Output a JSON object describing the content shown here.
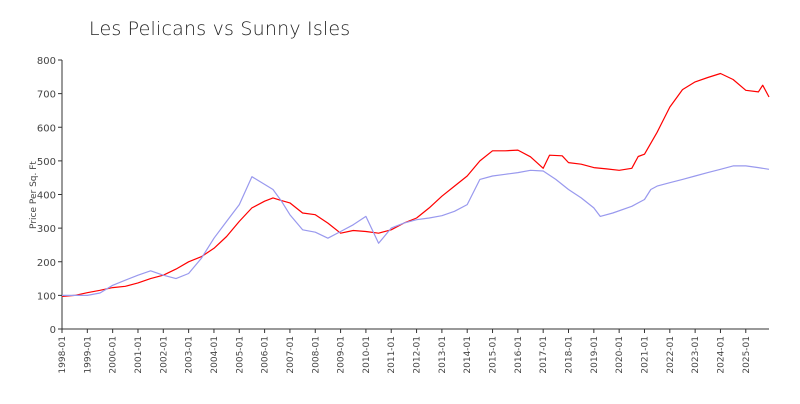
{
  "chart_data": {
    "type": "line",
    "title": "Les Pelicans vs Sunny Isles",
    "xlabel": "",
    "ylabel": "Price Per Sq. Ft",
    "ylim": [
      0,
      800
    ],
    "xlim": [
      "1998-01",
      "2025-12"
    ],
    "y_ticks": [
      0,
      100,
      200,
      300,
      400,
      500,
      600,
      700,
      800
    ],
    "x_ticks": [
      "1998-01",
      "1999-01",
      "2000-01",
      "2001-01",
      "2002-01",
      "2003-01",
      "2004-01",
      "2005-01",
      "2006-01",
      "2007-01",
      "2008-01",
      "2009-01",
      "2010-01",
      "2011-01",
      "2012-01",
      "2013-01",
      "2014-01",
      "2015-01",
      "2016-01",
      "2017-01",
      "2018-01",
      "2019-01",
      "2020-01",
      "2021-01",
      "2022-01",
      "2023-01",
      "2024-01",
      "2025-01"
    ],
    "grid": false,
    "legend": "none",
    "series": [
      {
        "color": "#ff0000",
        "points": [
          [
            "1998-01",
            97
          ],
          [
            "1998-07",
            100
          ],
          [
            "1999-01",
            108
          ],
          [
            "1999-07",
            115
          ],
          [
            "2000-01",
            123
          ],
          [
            "2000-07",
            127
          ],
          [
            "2001-01",
            137
          ],
          [
            "2001-07",
            150
          ],
          [
            "2002-01",
            160
          ],
          [
            "2002-07",
            178
          ],
          [
            "2003-01",
            200
          ],
          [
            "2003-07",
            215
          ],
          [
            "2004-01",
            240
          ],
          [
            "2004-07",
            275
          ],
          [
            "2005-01",
            320
          ],
          [
            "2005-07",
            360
          ],
          [
            "2006-01",
            380
          ],
          [
            "2006-05",
            390
          ],
          [
            "2006-09",
            382
          ],
          [
            "2007-01",
            375
          ],
          [
            "2007-07",
            345
          ],
          [
            "2008-01",
            340
          ],
          [
            "2008-07",
            315
          ],
          [
            "2009-01",
            285
          ],
          [
            "2009-07",
            293
          ],
          [
            "2010-01",
            290
          ],
          [
            "2010-07",
            285
          ],
          [
            "2011-01",
            295
          ],
          [
            "2011-07",
            315
          ],
          [
            "2012-01",
            330
          ],
          [
            "2012-07",
            360
          ],
          [
            "2013-01",
            395
          ],
          [
            "2013-07",
            425
          ],
          [
            "2014-01",
            455
          ],
          [
            "2014-07",
            500
          ],
          [
            "2015-01",
            530
          ],
          [
            "2015-07",
            530
          ],
          [
            "2016-01",
            532
          ],
          [
            "2016-07",
            512
          ],
          [
            "2017-01",
            478
          ],
          [
            "2017-04",
            517
          ],
          [
            "2017-10",
            515
          ],
          [
            "2018-01",
            495
          ],
          [
            "2018-07",
            490
          ],
          [
            "2019-01",
            480
          ],
          [
            "2019-07",
            476
          ],
          [
            "2020-01",
            472
          ],
          [
            "2020-07",
            478
          ],
          [
            "2020-10",
            513
          ],
          [
            "2021-01",
            520
          ],
          [
            "2021-07",
            585
          ],
          [
            "2022-01",
            660
          ],
          [
            "2022-07",
            712
          ],
          [
            "2023-01",
            735
          ],
          [
            "2023-07",
            748
          ],
          [
            "2024-01",
            760
          ],
          [
            "2024-07",
            742
          ],
          [
            "2025-01",
            710
          ],
          [
            "2025-07",
            705
          ],
          [
            "2025-09",
            725
          ],
          [
            "2025-12",
            690
          ]
        ]
      },
      {
        "color": "#9999ee",
        "points": [
          [
            "1998-01",
            100
          ],
          [
            "1998-07",
            100
          ],
          [
            "1999-01",
            100
          ],
          [
            "1999-07",
            107
          ],
          [
            "2000-01",
            130
          ],
          [
            "2000-07",
            145
          ],
          [
            "2001-01",
            160
          ],
          [
            "2001-07",
            173
          ],
          [
            "2002-01",
            160
          ],
          [
            "2002-07",
            150
          ],
          [
            "2003-01",
            165
          ],
          [
            "2003-07",
            210
          ],
          [
            "2004-01",
            270
          ],
          [
            "2004-07",
            320
          ],
          [
            "2005-01",
            370
          ],
          [
            "2005-07",
            453
          ],
          [
            "2006-01",
            430
          ],
          [
            "2006-05",
            415
          ],
          [
            "2006-09",
            380
          ],
          [
            "2007-01",
            340
          ],
          [
            "2007-07",
            295
          ],
          [
            "2008-01",
            288
          ],
          [
            "2008-07",
            270
          ],
          [
            "2009-01",
            290
          ],
          [
            "2009-07",
            310
          ],
          [
            "2010-01",
            335
          ],
          [
            "2010-07",
            255
          ],
          [
            "2011-01",
            300
          ],
          [
            "2011-07",
            315
          ],
          [
            "2012-01",
            325
          ],
          [
            "2012-07",
            330
          ],
          [
            "2013-01",
            337
          ],
          [
            "2013-07",
            350
          ],
          [
            "2014-01",
            370
          ],
          [
            "2014-07",
            445
          ],
          [
            "2015-01",
            455
          ],
          [
            "2015-07",
            460
          ],
          [
            "2016-01",
            465
          ],
          [
            "2016-07",
            472
          ],
          [
            "2017-01",
            470
          ],
          [
            "2017-07",
            445
          ],
          [
            "2018-01",
            415
          ],
          [
            "2018-07",
            390
          ],
          [
            "2019-01",
            360
          ],
          [
            "2019-04",
            335
          ],
          [
            "2019-10",
            345
          ],
          [
            "2020-07",
            365
          ],
          [
            "2021-01",
            385
          ],
          [
            "2021-04",
            415
          ],
          [
            "2021-07",
            425
          ],
          [
            "2022-01",
            435
          ],
          [
            "2022-07",
            445
          ],
          [
            "2023-01",
            455
          ],
          [
            "2023-07",
            465
          ],
          [
            "2024-01",
            475
          ],
          [
            "2024-07",
            485
          ],
          [
            "2025-01",
            485
          ],
          [
            "2025-07",
            480
          ],
          [
            "2025-12",
            475
          ]
        ]
      }
    ]
  }
}
